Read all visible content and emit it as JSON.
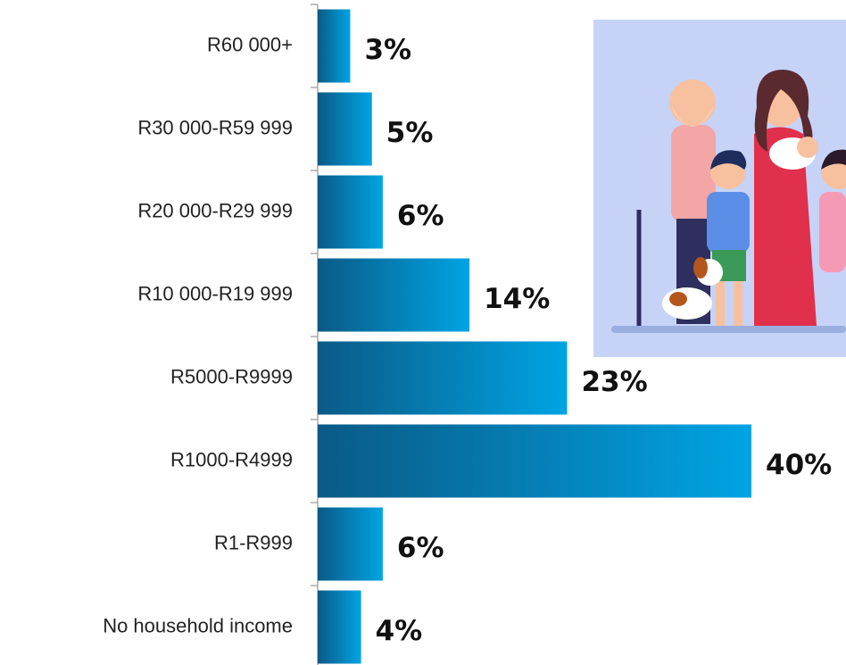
{
  "chart_data": {
    "type": "bar",
    "orientation": "horizontal",
    "categories": [
      "R60 000+",
      "R30 000-R59 999",
      "R20 000-R29 999",
      "R10 000-R19 999",
      "R5000-R9999",
      "R1000-R4999",
      "R1-R999",
      "No household income"
    ],
    "values": [
      3,
      5,
      6,
      14,
      23,
      40,
      6,
      4
    ],
    "value_labels": [
      "3%",
      "5%",
      "6%",
      "14%",
      "23%",
      "40%",
      "6%",
      "4%"
    ],
    "gradient": [
      "#0a5a86",
      "#00a4e4"
    ]
  }
}
